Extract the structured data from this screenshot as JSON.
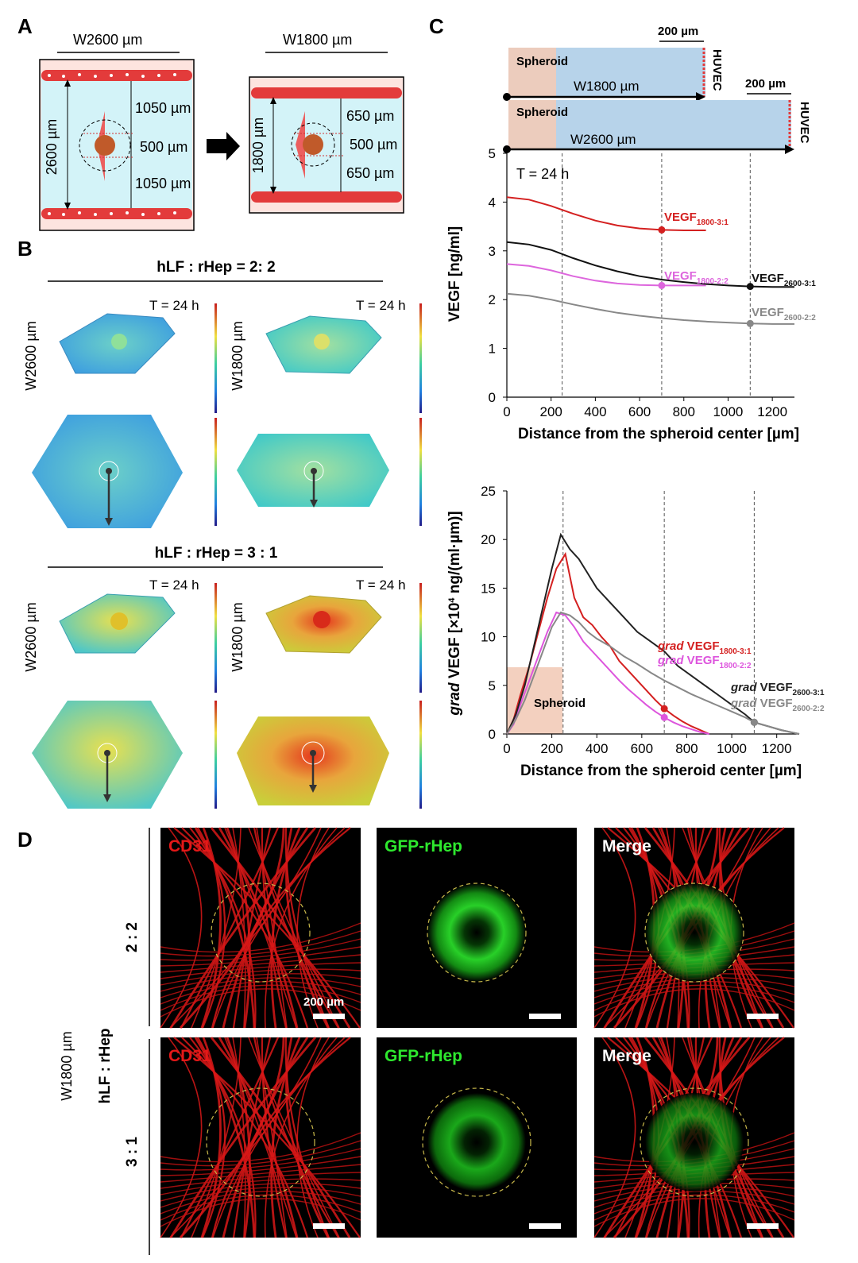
{
  "panels": {
    "A": "A",
    "B": "B",
    "C": "C",
    "D": "D"
  },
  "panelA": {
    "wide": {
      "title": "W2600 µm",
      "height": "2600 µm",
      "top": "1050 µm",
      "mid": "500 µm",
      "bottom": "1050 µm"
    },
    "narrow": {
      "title": "W1800 µm",
      "height": "1800 µm",
      "top": "650 µm",
      "mid": "500 µm",
      "bottom": "650 µm"
    }
  },
  "panelB": {
    "ratio1": "hLF : rHep = 2: 2",
    "ratio2": "hLF : rHep = 3 : 1",
    "time": "T = 24 h",
    "wide_label": "W2600 µm",
    "narrow_label": "W1800 µm"
  },
  "panelC": {
    "top_channel": {
      "spheroid": "Spheroid",
      "width": "W1800 µm",
      "huvec": "HUVEC",
      "dist": "200 µm"
    },
    "bottom_channel": {
      "spheroid": "Spheroid",
      "width": "W2600 µm",
      "huvec": "HUVEC",
      "dist": "200 µm"
    },
    "upper_time": "T = 24 h",
    "lower_spheroid": "Spheroid"
  },
  "chart_data": [
    {
      "type": "line",
      "annotation": "T = 24 h",
      "xlabel": "Distance from the spheroid center [µm]",
      "ylabel": "VEGF [ng/ml]",
      "xlim": [
        0,
        1300
      ],
      "ylim": [
        0,
        5
      ],
      "xticks": [
        0,
        200,
        400,
        600,
        800,
        1000,
        1200
      ],
      "yticks": [
        0,
        1,
        2,
        3,
        4,
        5
      ],
      "reference_lines_x": [
        250,
        700,
        1100
      ],
      "series": [
        {
          "name": "VEGF1800-3:1",
          "label_main": "VEGF",
          "label_sub": "1800-3:1",
          "color": "#d42020",
          "x": [
            0,
            100,
            200,
            300,
            400,
            500,
            600,
            700,
            800,
            900
          ],
          "y": [
            4.1,
            4.05,
            3.92,
            3.76,
            3.62,
            3.52,
            3.46,
            3.43,
            3.42,
            3.42
          ],
          "marker": [
            700,
            3.43
          ]
        },
        {
          "name": "VEGF2600-3:1",
          "label_main": "VEGF",
          "label_sub": "2600-3:1",
          "color": "#111111",
          "x": [
            0,
            100,
            200,
            300,
            400,
            500,
            600,
            700,
            800,
            900,
            1000,
            1100,
            1200,
            1300
          ],
          "y": [
            3.18,
            3.13,
            3.02,
            2.85,
            2.7,
            2.58,
            2.48,
            2.41,
            2.36,
            2.32,
            2.29,
            2.27,
            2.26,
            2.26
          ],
          "marker": [
            1100,
            2.27
          ]
        },
        {
          "name": "VEGF1800-2:2",
          "label_main": "VEGF",
          "label_sub": "1800-2:2",
          "color": "#dd66dd",
          "x": [
            0,
            100,
            200,
            300,
            400,
            500,
            600,
            700,
            800,
            900
          ],
          "y": [
            2.73,
            2.69,
            2.6,
            2.48,
            2.39,
            2.33,
            2.3,
            2.29,
            2.29,
            2.29
          ],
          "marker": [
            700,
            2.29
          ]
        },
        {
          "name": "VEGF2600-2:2",
          "label_main": "VEGF",
          "label_sub": "2600-2:2",
          "color": "#888888",
          "x": [
            0,
            100,
            200,
            300,
            400,
            500,
            600,
            700,
            800,
            900,
            1000,
            1100,
            1200,
            1300
          ],
          "y": [
            2.12,
            2.08,
            2.0,
            1.9,
            1.81,
            1.73,
            1.67,
            1.62,
            1.58,
            1.55,
            1.53,
            1.51,
            1.5,
            1.5
          ],
          "marker": [
            1100,
            1.51
          ]
        }
      ]
    },
    {
      "type": "line",
      "xlabel": "Distance from the spheroid center [µm]",
      "ylabel_italic": "grad",
      "ylabel_rest": " VEGF [×10",
      "ylabel_sup": "4",
      "ylabel_end": " ng/(ml·µm)]",
      "xlim": [
        0,
        1300
      ],
      "ylim": [
        0,
        25
      ],
      "xticks": [
        0,
        200,
        400,
        600,
        800,
        1000,
        1200
      ],
      "yticks": [
        0,
        5,
        10,
        15,
        20,
        25
      ],
      "reference_lines_x": [
        250,
        700,
        1100
      ],
      "series": [
        {
          "name": "grad VEGF1800-3:1",
          "label_italic": "grad",
          "label_main": " VEGF",
          "label_sub": "1800-3:1",
          "color": "#d42020",
          "x": [
            0,
            30,
            60,
            100,
            140,
            180,
            220,
            260,
            300,
            340,
            380,
            420,
            460,
            500,
            540,
            580,
            620,
            660,
            700,
            740,
            780,
            820,
            860,
            900
          ],
          "y": [
            0,
            1.5,
            4,
            7,
            10.5,
            14,
            17,
            18.5,
            14,
            12,
            11.2,
            10,
            9,
            7.5,
            6.5,
            5.5,
            4.5,
            3.5,
            2.6,
            1.9,
            1.3,
            0.8,
            0.4,
            0
          ],
          "marker": [
            700,
            2.6
          ]
        },
        {
          "name": "grad VEGF1800-2:2",
          "label_italic": "grad",
          "label_main": " VEGF",
          "label_sub": "1800-2:2",
          "color": "#dd55dd",
          "x": [
            0,
            30,
            60,
            100,
            140,
            180,
            220,
            260,
            300,
            340,
            380,
            420,
            460,
            500,
            540,
            580,
            620,
            660,
            700,
            740,
            780,
            820,
            860,
            900
          ],
          "y": [
            0,
            1,
            3,
            5.5,
            8,
            10.5,
            12.5,
            12.2,
            11,
            9.5,
            8.5,
            7.5,
            6.5,
            5.5,
            4.6,
            3.8,
            3,
            2.3,
            1.7,
            1.2,
            0.8,
            0.5,
            0.2,
            0
          ],
          "marker": [
            700,
            1.7
          ]
        },
        {
          "name": "grad VEGF2600-3:1",
          "label_italic": "grad",
          "label_main": " VEGF",
          "label_sub": "2600-3:1",
          "color": "#222222",
          "x": [
            0,
            40,
            80,
            120,
            160,
            200,
            240,
            280,
            320,
            360,
            400,
            460,
            520,
            580,
            640,
            700,
            760,
            820,
            880,
            940,
            1000,
            1060,
            1100,
            1160,
            1220,
            1280,
            1300
          ],
          "y": [
            0,
            2,
            5,
            9,
            13,
            17,
            20.5,
            19,
            18,
            16.5,
            15,
            13.5,
            12,
            10.5,
            9.5,
            8.5,
            7,
            6,
            5,
            4,
            3,
            2,
            1.2,
            0.8,
            0.4,
            0.1,
            0
          ],
          "marker": [
            1100,
            1.2
          ]
        },
        {
          "name": "grad VEGF2600-2:2",
          "label_italic": "grad",
          "label_main": " VEGF",
          "label_sub": "2600-2:2",
          "color": "#888888",
          "x": [
            0,
            40,
            80,
            120,
            160,
            200,
            240,
            280,
            320,
            360,
            400,
            460,
            520,
            580,
            640,
            700,
            760,
            820,
            880,
            940,
            1000,
            1060,
            1100,
            1160,
            1220,
            1280,
            1300
          ],
          "y": [
            0,
            1.5,
            3.5,
            6,
            8.5,
            11,
            12.5,
            12.2,
            11.5,
            10.5,
            9.8,
            9,
            8,
            7.2,
            6.3,
            5.5,
            4.8,
            4.1,
            3.5,
            2.9,
            2.3,
            1.7,
            1.2,
            0.8,
            0.4,
            0.1,
            0
          ],
          "marker": [
            1100,
            1.2
          ]
        }
      ]
    }
  ],
  "panelD": {
    "cd31": "CD31",
    "gfp": "GFP-rHep",
    "merge": "Merge",
    "row1": "2 : 2",
    "row2": "3 : 1",
    "group": "hLF : rHep",
    "width": "W1800 µm",
    "scale": "200 µm"
  },
  "colors": {
    "cd31": "#e41818",
    "gfp": "#2ee82e",
    "channel": "#b7d3ea",
    "huvec": "#e33b3b",
    "bg_a": "#fde4df",
    "liquid": "#d3f3f8"
  }
}
